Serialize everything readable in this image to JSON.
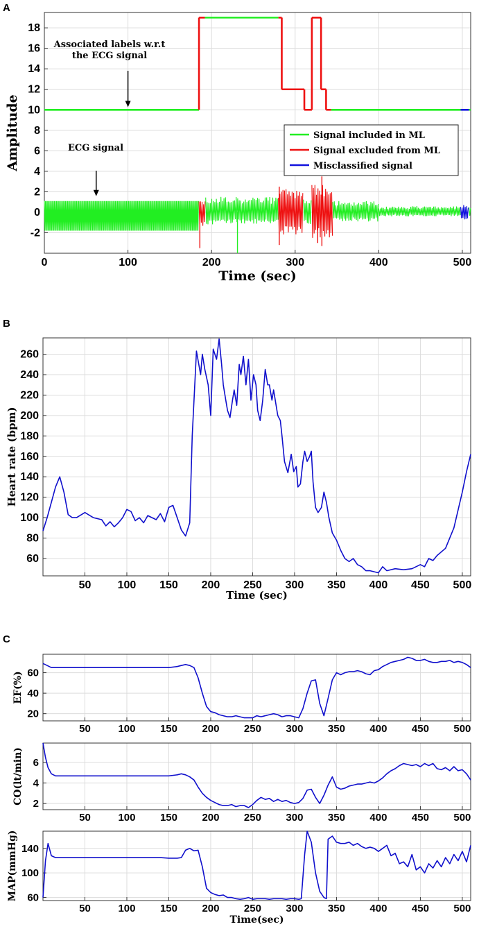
{
  "colors": {
    "included": "#22ee22",
    "excluded": "#ee1111",
    "misclassified": "#1111dd",
    "line": "#1010cc"
  },
  "chart_data": [
    {
      "panel": "A",
      "type": "line",
      "xlabel": "Time (sec)",
      "ylabel": "Amplitude",
      "xlim": [
        0,
        510
      ],
      "ylim": [
        -4,
        19.5
      ],
      "xticks": [
        0,
        100,
        200,
        300,
        400,
        500
      ],
      "yticks": [
        -2,
        0,
        2,
        4,
        6,
        8,
        10,
        12,
        14,
        16,
        18
      ],
      "grid": true,
      "legend_position": "right",
      "series": [
        {
          "name": "Signal included in ML",
          "color": "included"
        },
        {
          "name": "Signal excluded from ML",
          "color": "excluded"
        },
        {
          "name": "Misclassified signal",
          "color": "misclassified"
        }
      ],
      "label_segments": [
        {
          "x0": 0,
          "x1": 185,
          "y": 10,
          "class": "included"
        },
        {
          "x0": 185,
          "x1": 192,
          "y": 19,
          "class": "excluded"
        },
        {
          "x0": 192,
          "x1": 280,
          "y": 19,
          "class": "included"
        },
        {
          "x0": 280,
          "x1": 284,
          "y": 19,
          "class": "excluded"
        },
        {
          "x0": 284,
          "x1": 311,
          "y": 12,
          "class": "excluded"
        },
        {
          "x0": 311,
          "x1": 320,
          "y": 10,
          "class": "excluded"
        },
        {
          "x0": 320,
          "x1": 331,
          "y": 19,
          "class": "excluded"
        },
        {
          "x0": 331,
          "x1": 337,
          "y": 12,
          "class": "excluded"
        },
        {
          "x0": 337,
          "x1": 343,
          "y": 10,
          "class": "excluded"
        },
        {
          "x0": 343,
          "x1": 498,
          "y": 10,
          "class": "included"
        },
        {
          "x0": 498,
          "x1": 508,
          "y": 10,
          "class": "misclassified"
        },
        {
          "x0": 508,
          "x1": 510,
          "y": 10,
          "class": "included"
        }
      ],
      "ecg_segments": [
        {
          "x0": 0,
          "x1": 185,
          "lo": -1.8,
          "hi": 1.1,
          "class": "included"
        },
        {
          "x0": 185,
          "x1": 193,
          "lo": -1.5,
          "hi": 1.2,
          "class": "excluded"
        },
        {
          "x0": 193,
          "x1": 280,
          "lo": -1.2,
          "hi": 1.5,
          "class": "included"
        },
        {
          "x0": 280,
          "x1": 310,
          "lo": -2.2,
          "hi": 2.3,
          "class": "excluded"
        },
        {
          "x0": 310,
          "x1": 320,
          "lo": -1.3,
          "hi": 1.4,
          "class": "included"
        },
        {
          "x0": 320,
          "x1": 345,
          "lo": -2.6,
          "hi": 2.7,
          "class": "excluded"
        },
        {
          "x0": 345,
          "x1": 400,
          "lo": -0.9,
          "hi": 1.1,
          "class": "included"
        },
        {
          "x0": 400,
          "x1": 498,
          "lo": -0.4,
          "hi": 0.6,
          "class": "included"
        },
        {
          "x0": 498,
          "x1": 508,
          "lo": -0.7,
          "hi": 0.8,
          "class": "misclassified"
        },
        {
          "x0": 508,
          "x1": 510,
          "lo": -0.4,
          "hi": 0.5,
          "class": "included"
        }
      ],
      "ecg_spikes": [
        {
          "x": 186,
          "y0": -3.5,
          "y1": 0,
          "class": "excluded"
        },
        {
          "x": 231,
          "y0": -4,
          "y1": 0,
          "class": "included"
        },
        {
          "x": 281,
          "y0": -3.2,
          "y1": 2.5,
          "class": "excluded"
        },
        {
          "x": 332,
          "y0": -3.3,
          "y1": 3.5,
          "class": "excluded"
        },
        {
          "x": 327,
          "y0": -3.0,
          "y1": 0,
          "class": "excluded"
        }
      ],
      "annotations": [
        {
          "lines": [
            "Associated labels w.r.t",
            "the ECG signal"
          ],
          "arrow_x": 100,
          "arrow_y": 10.2
        },
        {
          "lines": [
            "ECG signal"
          ],
          "arrow_x": 62,
          "arrow_y": 1.5
        }
      ]
    },
    {
      "panel": "B",
      "type": "line",
      "xlabel": "Time (sec)",
      "ylabel": "Heart rate (bpm)",
      "xlim": [
        0,
        510
      ],
      "ylim": [
        43,
        276
      ],
      "xticks": [
        50,
        100,
        150,
        200,
        250,
        300,
        350,
        400,
        450,
        500
      ],
      "yticks": [
        60,
        80,
        100,
        120,
        140,
        160,
        180,
        200,
        220,
        240,
        260
      ],
      "grid": true,
      "x": [
        0,
        5,
        10,
        15,
        20,
        25,
        30,
        35,
        40,
        50,
        60,
        70,
        75,
        80,
        85,
        90,
        95,
        100,
        105,
        110,
        115,
        120,
        125,
        130,
        135,
        140,
        145,
        150,
        155,
        160,
        165,
        170,
        175,
        178,
        183,
        188,
        190,
        193,
        197,
        200,
        203,
        207,
        210,
        213,
        215,
        218,
        220,
        223,
        226,
        228,
        231,
        234,
        236,
        239,
        242,
        245,
        248,
        251,
        254,
        256,
        259,
        262,
        265,
        268,
        270,
        273,
        275,
        278,
        280,
        283,
        285,
        288,
        292,
        296,
        299,
        302,
        304,
        307,
        310,
        312,
        315,
        318,
        320,
        322,
        325,
        328,
        332,
        335,
        338,
        341,
        345,
        350,
        355,
        360,
        365,
        370,
        375,
        380,
        385,
        390,
        395,
        400,
        405,
        410,
        420,
        430,
        440,
        450,
        455,
        460,
        465,
        470,
        480,
        490,
        500,
        505,
        510
      ],
      "y": [
        87,
        100,
        115,
        130,
        140,
        125,
        103,
        100,
        100,
        105,
        100,
        98,
        92,
        96,
        91,
        95,
        100,
        108,
        106,
        97,
        100,
        95,
        102,
        100,
        98,
        104,
        96,
        110,
        112,
        100,
        88,
        82,
        95,
        180,
        263,
        240,
        260,
        245,
        230,
        200,
        265,
        255,
        275,
        250,
        230,
        215,
        205,
        198,
        215,
        225,
        210,
        250,
        240,
        258,
        230,
        255,
        215,
        240,
        230,
        205,
        195,
        215,
        245,
        230,
        230,
        215,
        225,
        210,
        200,
        195,
        180,
        155,
        144,
        162,
        145,
        150,
        130,
        133,
        155,
        165,
        155,
        160,
        165,
        135,
        110,
        105,
        110,
        125,
        115,
        100,
        85,
        78,
        68,
        60,
        57,
        60,
        54,
        52,
        48,
        48,
        47,
        46,
        52,
        48,
        50,
        49,
        50,
        54,
        52,
        60,
        58,
        63,
        70,
        90,
        125,
        145,
        162
      ]
    },
    {
      "panel": "C",
      "type": "line",
      "xlabel": "",
      "ylabel": "EF(%)",
      "xlim": [
        0,
        510
      ],
      "ylim": [
        13,
        78
      ],
      "xticks": [
        50,
        100,
        150,
        200,
        250,
        300,
        350,
        400,
        450,
        500
      ],
      "yticks": [
        20,
        40,
        60
      ],
      "grid": true,
      "x": [
        0,
        5,
        10,
        20,
        40,
        60,
        80,
        100,
        120,
        140,
        150,
        160,
        165,
        170,
        175,
        180,
        185,
        190,
        195,
        200,
        205,
        210,
        215,
        220,
        225,
        230,
        235,
        240,
        245,
        250,
        255,
        260,
        265,
        270,
        275,
        280,
        285,
        290,
        295,
        300,
        305,
        310,
        315,
        320,
        325,
        330,
        335,
        340,
        345,
        350,
        355,
        360,
        365,
        370,
        375,
        380,
        385,
        390,
        395,
        400,
        405,
        410,
        415,
        420,
        425,
        430,
        435,
        440,
        445,
        450,
        455,
        460,
        465,
        470,
        475,
        480,
        485,
        490,
        495,
        500,
        505,
        510
      ],
      "y": [
        69,
        67,
        65,
        65,
        65,
        65,
        65,
        65,
        65,
        65,
        65,
        66,
        67,
        68,
        67,
        65,
        55,
        40,
        27,
        22,
        21,
        19,
        18,
        17,
        17,
        18,
        17,
        16,
        16,
        16,
        18,
        17,
        18,
        19,
        20,
        19,
        17,
        18,
        18,
        17,
        16,
        25,
        40,
        52,
        53,
        30,
        18,
        35,
        53,
        60,
        58,
        60,
        61,
        61,
        62,
        61,
        59,
        58,
        62,
        63,
        66,
        68,
        70,
        71,
        72,
        73,
        75,
        74,
        72,
        72,
        73,
        71,
        70,
        70,
        71,
        71,
        72,
        70,
        71,
        70,
        68,
        65
      ]
    },
    {
      "panel": "C",
      "type": "line",
      "xlabel": "",
      "ylabel": "CO(lt/min)",
      "xlim": [
        0,
        510
      ],
      "ylim": [
        1.4,
        7.9
      ],
      "xticks": [
        50,
        100,
        150,
        200,
        250,
        300,
        350,
        400,
        450,
        500
      ],
      "yticks": [
        2,
        4,
        6
      ],
      "grid": true,
      "x": [
        0,
        3,
        6,
        10,
        15,
        20,
        40,
        60,
        80,
        100,
        120,
        140,
        150,
        160,
        165,
        170,
        175,
        180,
        185,
        190,
        195,
        200,
        205,
        210,
        215,
        220,
        225,
        230,
        235,
        240,
        245,
        250,
        255,
        260,
        265,
        270,
        275,
        280,
        285,
        290,
        295,
        300,
        305,
        310,
        315,
        320,
        325,
        330,
        335,
        340,
        345,
        350,
        355,
        360,
        365,
        370,
        375,
        380,
        385,
        390,
        395,
        400,
        405,
        410,
        415,
        420,
        425,
        430,
        435,
        440,
        445,
        450,
        455,
        460,
        465,
        470,
        475,
        480,
        485,
        490,
        495,
        500,
        505,
        510
      ],
      "y": [
        7.9,
        6.5,
        5.5,
        4.9,
        4.7,
        4.7,
        4.7,
        4.7,
        4.7,
        4.7,
        4.7,
        4.7,
        4.7,
        4.8,
        4.9,
        4.8,
        4.6,
        4.3,
        3.6,
        3.0,
        2.6,
        2.3,
        2.1,
        1.9,
        1.8,
        1.8,
        1.9,
        1.7,
        1.8,
        1.8,
        1.6,
        1.9,
        2.3,
        2.6,
        2.4,
        2.5,
        2.2,
        2.4,
        2.2,
        2.3,
        2.1,
        2.0,
        2.1,
        2.5,
        3.3,
        3.4,
        2.6,
        2.0,
        2.8,
        3.8,
        4.6,
        3.6,
        3.4,
        3.5,
        3.7,
        3.8,
        3.9,
        3.9,
        4.0,
        4.1,
        4.0,
        4.2,
        4.5,
        4.9,
        5.2,
        5.4,
        5.7,
        5.9,
        5.8,
        5.7,
        5.8,
        5.6,
        5.9,
        5.7,
        5.9,
        5.4,
        5.3,
        5.5,
        5.2,
        5.6,
        5.2,
        5.3,
        4.9,
        4.3
      ]
    },
    {
      "panel": "C",
      "type": "line",
      "xlabel": "Time(sec)",
      "ylabel": "MAP(mmHg)",
      "xlim": [
        0,
        510
      ],
      "ylim": [
        55,
        168
      ],
      "xticks": [
        50,
        100,
        150,
        200,
        250,
        300,
        350,
        400,
        450,
        500
      ],
      "yticks": [
        60,
        100,
        140
      ],
      "grid": true,
      "x": [
        0,
        3,
        6,
        10,
        15,
        20,
        40,
        60,
        80,
        100,
        120,
        140,
        150,
        160,
        165,
        170,
        175,
        180,
        185,
        190,
        195,
        200,
        205,
        210,
        215,
        220,
        225,
        230,
        235,
        240,
        245,
        250,
        255,
        260,
        265,
        270,
        275,
        280,
        285,
        290,
        295,
        300,
        305,
        308,
        312,
        315,
        320,
        325,
        330,
        335,
        338,
        340,
        345,
        350,
        355,
        360,
        365,
        370,
        375,
        380,
        385,
        390,
        395,
        400,
        405,
        410,
        415,
        420,
        425,
        430,
        435,
        440,
        445,
        450,
        455,
        460,
        465,
        470,
        475,
        480,
        485,
        490,
        495,
        500,
        505,
        510
      ],
      "y": [
        60,
        120,
        148,
        128,
        125,
        125,
        125,
        125,
        125,
        125,
        125,
        125,
        124,
        124,
        125,
        137,
        140,
        136,
        137,
        110,
        75,
        68,
        65,
        63,
        64,
        60,
        60,
        58,
        57,
        58,
        60,
        57,
        58,
        58,
        58,
        57,
        58,
        58,
        58,
        57,
        58,
        58,
        57,
        58,
        130,
        168,
        150,
        100,
        70,
        60,
        58,
        155,
        160,
        150,
        148,
        148,
        150,
        145,
        148,
        143,
        140,
        142,
        140,
        135,
        140,
        145,
        128,
        132,
        115,
        118,
        110,
        130,
        105,
        110,
        100,
        115,
        108,
        120,
        110,
        125,
        115,
        130,
        120,
        135,
        118,
        145
      ]
    }
  ]
}
